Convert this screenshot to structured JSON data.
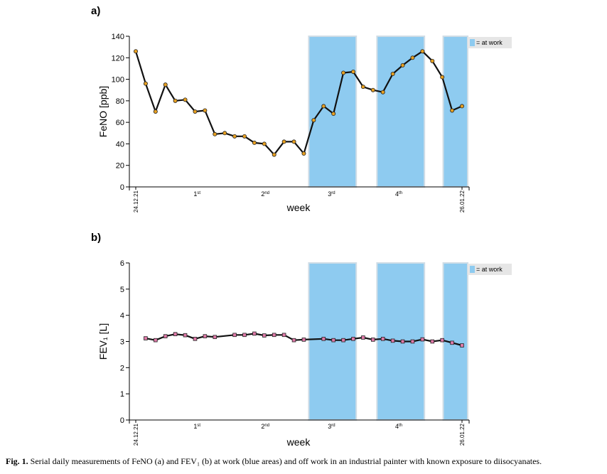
{
  "caption": {
    "prefix": "Fig. 1.",
    "text": "Serial daily measurements of FeNO (a) and FEV₁ (b) at work (blue areas) and off work in an industrial painter with known exposure to diisocyanates."
  },
  "colors": {
    "work_band": "#8ecbf0",
    "legend_bg": "#e6e6e6",
    "line": "#111111",
    "fenO_marker": "#e8a020",
    "fev_marker": "#e07aa8"
  },
  "chart_data": [
    {
      "panel": "a)",
      "type": "line",
      "ylabel": "FeNO [ppb]",
      "xlabel": "week",
      "ylim": [
        0,
        140
      ],
      "yticks": [
        0,
        20,
        40,
        60,
        80,
        100,
        120,
        140
      ],
      "xlim": [
        0,
        33
      ],
      "x_date_labels": [
        {
          "x": 0,
          "label": "24.12.21"
        },
        {
          "x": 33,
          "label": "26.01.22"
        }
      ],
      "week_labels": [
        {
          "x": 6.2,
          "base": "1",
          "sup": "st"
        },
        {
          "x": 13.1,
          "base": "2",
          "sup": "nd"
        },
        {
          "x": 19.8,
          "base": "3",
          "sup": "rd"
        },
        {
          "x": 26.6,
          "base": "4",
          "sup": "th"
        }
      ],
      "work_periods": [
        [
          17.5,
          22.3
        ],
        [
          24.4,
          29.2
        ],
        [
          31.1,
          34.1
        ]
      ],
      "legend": "= at work",
      "x": [
        0,
        1,
        2,
        3,
        4,
        5,
        6,
        7,
        8,
        9,
        10,
        11,
        12,
        13,
        14,
        15,
        16,
        17,
        18,
        19,
        20,
        21,
        22,
        23,
        24,
        25,
        26,
        27,
        28,
        29,
        30,
        31,
        32,
        33
      ],
      "values": [
        126,
        96,
        70,
        95,
        80,
        81,
        70,
        71,
        49,
        50,
        47,
        47,
        41,
        40,
        30,
        42,
        42,
        31,
        62,
        75,
        68,
        106,
        107,
        93,
        90,
        88,
        105,
        113,
        120,
        126,
        117,
        102,
        71,
        75
      ]
    },
    {
      "panel": "b)",
      "type": "line",
      "ylabel": "FEV₁ [L]",
      "xlabel": "week",
      "ylim": [
        0,
        6
      ],
      "yticks": [
        0,
        1,
        2,
        3,
        4,
        5,
        6
      ],
      "xlim": [
        0,
        33
      ],
      "x_date_labels": [
        {
          "x": 0,
          "label": "24.12.21"
        },
        {
          "x": 33,
          "label": "26.01.22"
        }
      ],
      "week_labels": [
        {
          "x": 6.2,
          "base": "1",
          "sup": "st"
        },
        {
          "x": 13.1,
          "base": "2",
          "sup": "nd"
        },
        {
          "x": 19.8,
          "base": "3",
          "sup": "rd"
        },
        {
          "x": 26.6,
          "base": "4",
          "sup": "th"
        }
      ],
      "work_periods": [
        [
          17.5,
          22.3
        ],
        [
          24.4,
          29.2
        ],
        [
          31.1,
          34.1
        ]
      ],
      "legend": "= at work",
      "x": [
        1,
        2,
        3,
        4,
        5,
        6,
        7,
        8,
        10,
        11,
        12,
        13,
        14,
        15,
        16,
        17,
        19,
        20,
        21,
        22,
        23,
        24,
        25,
        26,
        27,
        28,
        29,
        30,
        31,
        32,
        33
      ],
      "values": [
        3.12,
        3.05,
        3.2,
        3.28,
        3.24,
        3.1,
        3.2,
        3.17,
        3.25,
        3.25,
        3.3,
        3.23,
        3.25,
        3.25,
        3.05,
        3.07,
        3.1,
        3.05,
        3.05,
        3.1,
        3.15,
        3.07,
        3.1,
        3.03,
        3.0,
        3.0,
        3.08,
        3.0,
        3.05,
        2.95,
        2.85
      ]
    }
  ]
}
